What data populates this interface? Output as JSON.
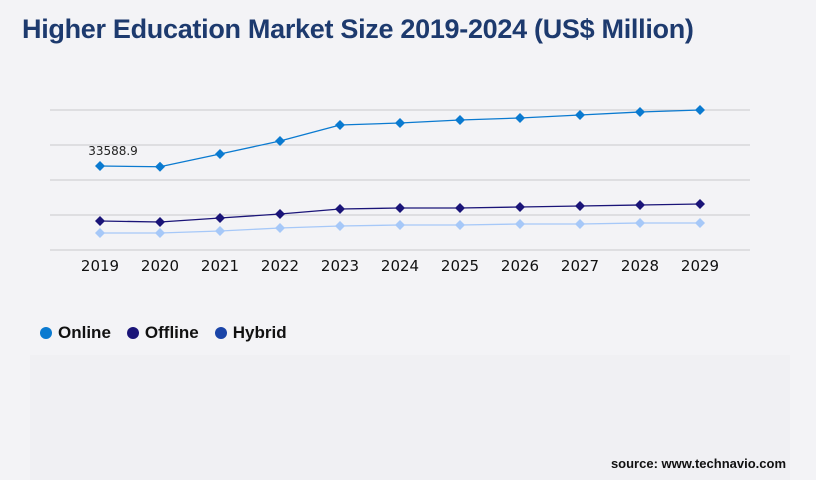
{
  "title": "Higher Education Market Size 2019-2024 (US$ Million)",
  "source": "source: www.technavio.com",
  "chart_data": {
    "type": "line",
    "title": "Higher Education Market Size 2019-2024 (US$ Million)",
    "categories": [
      "2019",
      "2020",
      "2021",
      "2022",
      "2023",
      "2024",
      "2025",
      "2026",
      "2027",
      "2028",
      "2029"
    ],
    "ylim": [
      0,
      56000
    ],
    "grid": true,
    "legend_placement": "bottom-left",
    "annotations": [
      {
        "series": "Online",
        "category": "2019",
        "text": "33588.9"
      }
    ],
    "series": [
      {
        "name": "Online",
        "color": "#0a7ad0",
        "line_color": "#0a7ad0",
        "values": [
          33588.9,
          33300,
          38400,
          43600,
          50000,
          50800,
          52000,
          52800,
          54000,
          55200,
          56000
        ]
      },
      {
        "name": "Offline",
        "color": "#1a1478",
        "line_color": "#1a1478",
        "values": [
          11600,
          11200,
          12800,
          14400,
          16400,
          16800,
          16800,
          17200,
          17600,
          18000,
          18400
        ]
      },
      {
        "name": "Hybrid",
        "color": "#1a44a8",
        "line_color": "#a6c8f8",
        "values": [
          6800,
          6800,
          7600,
          8800,
          9600,
          10000,
          10000,
          10400,
          10400,
          10800,
          10800
        ]
      }
    ]
  }
}
